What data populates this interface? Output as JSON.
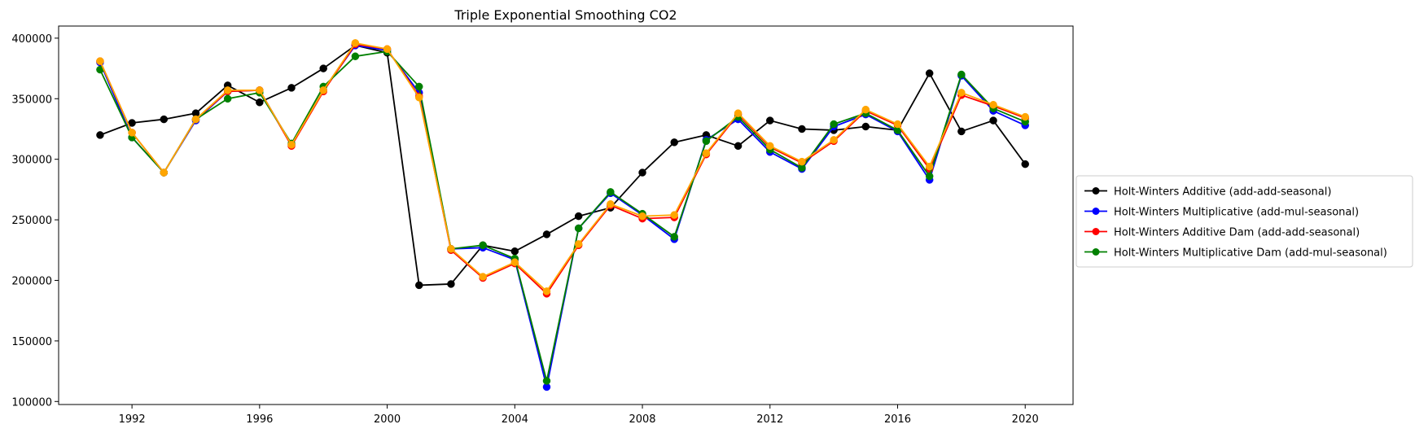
{
  "chart_data": {
    "type": "line",
    "title": "Triple Exponential Smoothing CO2",
    "xlabel": "",
    "ylabel": "",
    "xlim": [
      1989.7,
      2021.5
    ],
    "ylim": [
      97500,
      410000
    ],
    "grid": false,
    "legend_position": "center-right-outside",
    "x_ticks": [
      1992,
      1996,
      2000,
      2004,
      2008,
      2012,
      2016,
      2020
    ],
    "y_ticks": [
      100000,
      150000,
      200000,
      250000,
      300000,
      350000,
      400000
    ],
    "x": [
      1991,
      1992,
      1993,
      1994,
      1995,
      1996,
      1997,
      1998,
      1999,
      2000,
      2001,
      2002,
      2003,
      2004,
      2005,
      2006,
      2007,
      2008,
      2009,
      2010,
      2011,
      2012,
      2013,
      2014,
      2015,
      2016,
      2017,
      2018,
      2019,
      2020
    ],
    "series": [
      {
        "name": "Holt-Winters Additive (add-add-seasonal)",
        "color": "#000000",
        "values": [
          320000,
          330000,
          333000,
          338000,
          361000,
          347000,
          359000,
          375000,
          394000,
          388000,
          196000,
          197000,
          229000,
          224000,
          238000,
          253000,
          260000,
          289000,
          314000,
          320000,
          311000,
          332000,
          325000,
          324000,
          327000,
          324000,
          371000,
          323000,
          332000,
          296000
        ]
      },
      {
        "name": "Holt-Winters Multiplicative (add-mul-seasonal)",
        "color": "#0000ff",
        "values": [
          380000,
          318000,
          289000,
          332000,
          356000,
          357000,
          312000,
          357000,
          394000,
          390000,
          355000,
          226000,
          227000,
          217000,
          112000,
          243000,
          272000,
          254000,
          234000,
          316000,
          333000,
          306000,
          292000,
          327000,
          337000,
          323000,
          283000,
          369000,
          340000,
          328000
        ]
      },
      {
        "name": "Holt-Winters Additive Dam (add-add-seasonal)",
        "color": "#ff0000",
        "values": [
          381000,
          322000,
          289000,
          333000,
          356000,
          357000,
          311000,
          356000,
          395000,
          391000,
          352000,
          225000,
          202000,
          214000,
          189000,
          229000,
          262000,
          251000,
          252000,
          304000,
          337000,
          310000,
          297000,
          315000,
          340000,
          328000,
          292000,
          353000,
          344000,
          334000
        ]
      },
      {
        "name": "Holt-Winters Multiplicative Dam (add-mul-seasonal)",
        "color": "#008000",
        "values": [
          374000,
          318000,
          289000,
          333000,
          350000,
          355000,
          313000,
          360000,
          385000,
          389000,
          360000,
          226000,
          229000,
          218000,
          117000,
          243000,
          273000,
          255000,
          236000,
          315000,
          335000,
          308000,
          293000,
          329000,
          338000,
          324000,
          286000,
          370000,
          342000,
          331000
        ]
      },
      {
        "color": "#ffa500",
        "values": [
          381000,
          322000,
          289000,
          333000,
          357000,
          357000,
          312000,
          357000,
          396000,
          391000,
          351000,
          226000,
          203000,
          215000,
          191000,
          230000,
          263000,
          253000,
          254000,
          305000,
          338000,
          311000,
          298000,
          316000,
          341000,
          329000,
          294000,
          355000,
          345000,
          335000
        ]
      }
    ]
  }
}
